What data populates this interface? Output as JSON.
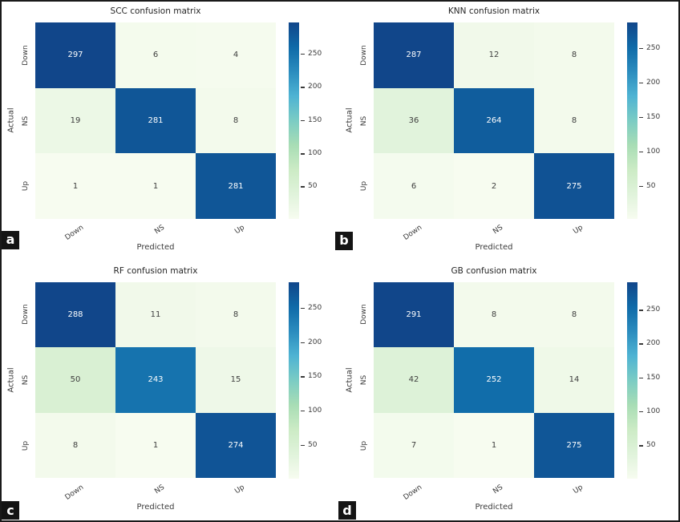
{
  "figure": {
    "background_color": "#ffffff",
    "border_color": "#1a1a1a"
  },
  "colormap": {
    "name": "GnBu",
    "stops": [
      "#f7fcf0",
      "#e0f3db",
      "#ccebc5",
      "#a8ddb5",
      "#7bccc4",
      "#4eb3d3",
      "#2b8cbe",
      "#0f6aa8",
      "#11468a"
    ],
    "annot_dark_text": "#3d3d3d",
    "annot_light_text": "#ffffff"
  },
  "chart_data": [
    {
      "type": "heatmap",
      "panel_label": "a",
      "title": "SCC confusion matrix",
      "xlabel": "Predicted",
      "ylabel": "Actual",
      "x_categories": [
        "Down",
        "NS",
        "Up"
      ],
      "y_categories": [
        "Down",
        "NS",
        "Up"
      ],
      "values": [
        [
          297,
          6,
          4
        ],
        [
          19,
          281,
          8
        ],
        [
          1,
          1,
          281
        ]
      ],
      "colorbar_ticks": [
        250,
        200,
        150,
        100,
        50
      ],
      "vmin": 1,
      "vmax": 297,
      "legend_position": "right",
      "grid": false
    },
    {
      "type": "heatmap",
      "panel_label": "b",
      "title": "KNN confusion matrix",
      "xlabel": "Predicted",
      "ylabel": "Actual",
      "x_categories": [
        "Down",
        "NS",
        "Up"
      ],
      "y_categories": [
        "Down",
        "NS",
        "Up"
      ],
      "values": [
        [
          287,
          12,
          8
        ],
        [
          36,
          264,
          8
        ],
        [
          6,
          2,
          275
        ]
      ],
      "colorbar_ticks": [
        250,
        200,
        150,
        100,
        50
      ],
      "vmin": 2,
      "vmax": 287,
      "legend_position": "right",
      "grid": false
    },
    {
      "type": "heatmap",
      "panel_label": "c",
      "title": "RF confusion matrix",
      "xlabel": "Predicted",
      "ylabel": "Actual",
      "x_categories": [
        "Down",
        "NS",
        "Up"
      ],
      "y_categories": [
        "Down",
        "NS",
        "Up"
      ],
      "values": [
        [
          288,
          11,
          8
        ],
        [
          50,
          243,
          15
        ],
        [
          8,
          1,
          274
        ]
      ],
      "colorbar_ticks": [
        250,
        200,
        150,
        100,
        50
      ],
      "vmin": 1,
      "vmax": 288,
      "legend_position": "right",
      "grid": false
    },
    {
      "type": "heatmap",
      "panel_label": "d",
      "title": "GB confusion matrix",
      "xlabel": "Predicted",
      "ylabel": "Actual",
      "x_categories": [
        "Down",
        "NS",
        "Up"
      ],
      "y_categories": [
        "Down",
        "NS",
        "Up"
      ],
      "values": [
        [
          291,
          8,
          8
        ],
        [
          42,
          252,
          14
        ],
        [
          7,
          1,
          275
        ]
      ],
      "colorbar_ticks": [
        250,
        200,
        150,
        100,
        50
      ],
      "vmin": 1,
      "vmax": 291,
      "legend_position": "right",
      "grid": false
    }
  ]
}
